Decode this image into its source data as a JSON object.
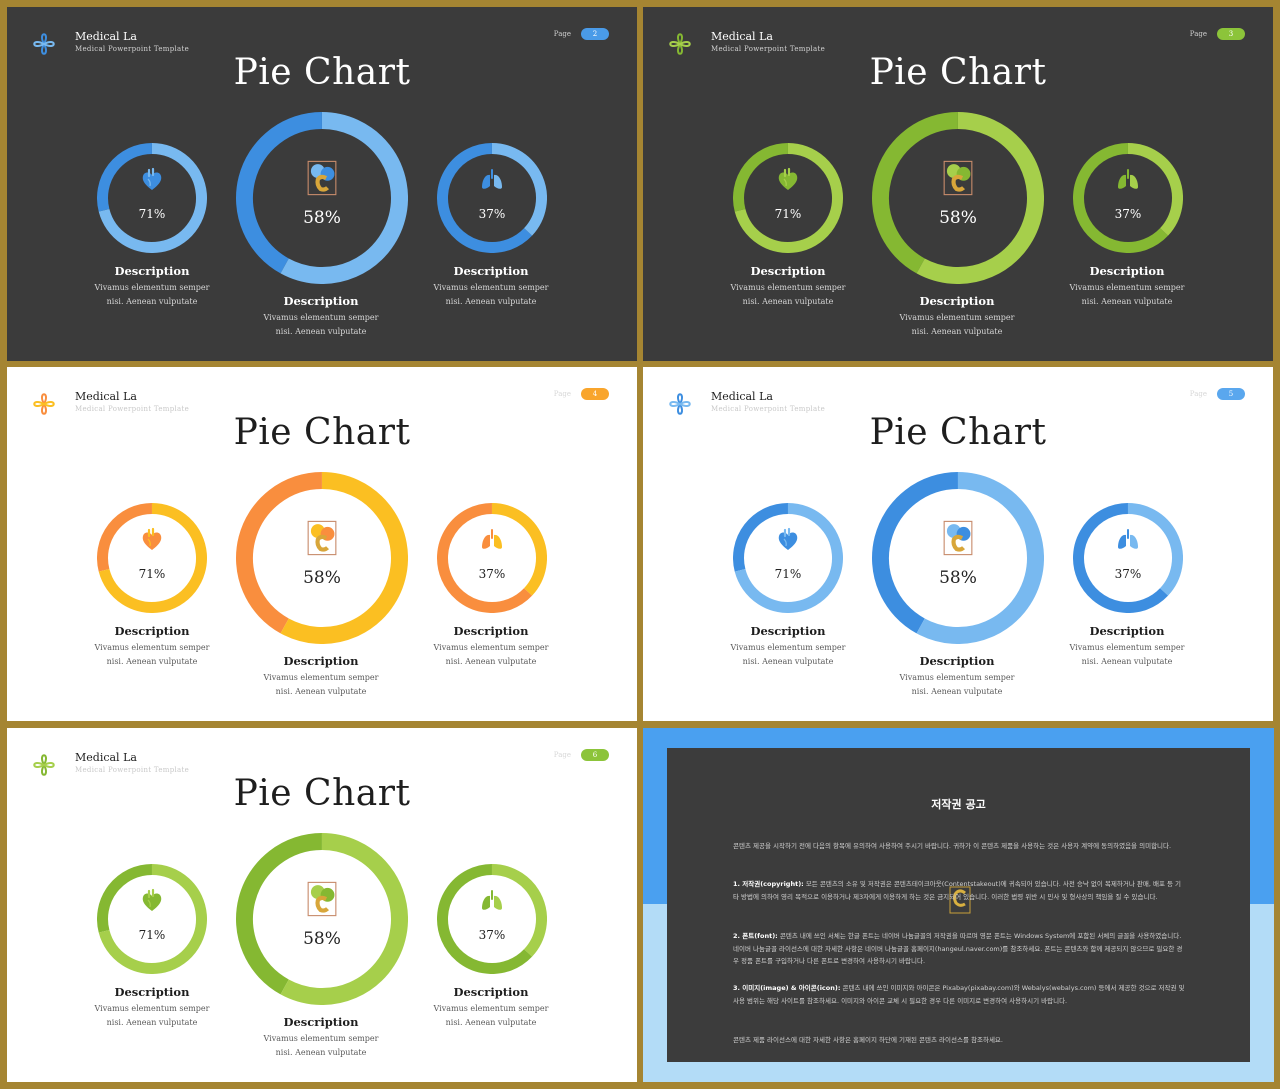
{
  "slides": [
    {
      "theme": "dark",
      "brand": {
        "title": "Medical La",
        "subtitle": "Medical Powerpoint Template"
      },
      "page": {
        "label": "Page",
        "number": "2"
      },
      "title": "Pie Chart",
      "colors": {
        "light": "#78b9f0",
        "dark": "#3d8ee0",
        "pill": "#4a9be8"
      },
      "charts": [
        {
          "value": 71,
          "label": "71%",
          "icon": "heart-icon"
        },
        {
          "value": 58,
          "label": "58%",
          "icon": "brand-logo-icon"
        },
        {
          "value": 37,
          "label": "37%",
          "icon": "lungs-icon"
        }
      ],
      "descriptions": [
        {
          "heading": "Description",
          "line1": "Vivamus elementum semper",
          "line2": "nisi. Aenean vulputate"
        },
        {
          "heading": "Description",
          "line1": "Vivamus elementum semper",
          "line2": "nisi. Aenean vulputate"
        },
        {
          "heading": "Description",
          "line1": "Vivamus elementum semper",
          "line2": "nisi. Aenean vulputate"
        }
      ]
    },
    {
      "theme": "dark",
      "brand": {
        "title": "Medical La",
        "subtitle": "Medical Powerpoint Template"
      },
      "page": {
        "label": "Page",
        "number": "3"
      },
      "title": "Pie Chart",
      "colors": {
        "light": "#a6cf4b",
        "dark": "#85b832",
        "pill": "#8cc43a"
      },
      "charts": [
        {
          "value": 71,
          "label": "71%",
          "icon": "heart-icon"
        },
        {
          "value": 58,
          "label": "58%",
          "icon": "brand-logo-icon"
        },
        {
          "value": 37,
          "label": "37%",
          "icon": "lungs-icon"
        }
      ],
      "descriptions": [
        {
          "heading": "Description",
          "line1": "Vivamus elementum semper",
          "line2": "nisi. Aenean vulputate"
        },
        {
          "heading": "Description",
          "line1": "Vivamus elementum semper",
          "line2": "nisi. Aenean vulputate"
        },
        {
          "heading": "Description",
          "line1": "Vivamus elementum semper",
          "line2": "nisi. Aenean vulputate"
        }
      ]
    },
    {
      "theme": "light",
      "brand": {
        "title": "Medical La",
        "subtitle": "Medical Powerpoint Template"
      },
      "page": {
        "label": "Page",
        "number": "4"
      },
      "title": "Pie Chart",
      "colors": {
        "light": "#fbbf22",
        "dark": "#f98e3e",
        "pill": "#f9a52c"
      },
      "charts": [
        {
          "value": 71,
          "label": "71%",
          "icon": "heart-icon"
        },
        {
          "value": 58,
          "label": "58%",
          "icon": "brand-logo-icon"
        },
        {
          "value": 37,
          "label": "37%",
          "icon": "lungs-icon"
        }
      ],
      "descriptions": [
        {
          "heading": "Description",
          "line1": "Vivamus elementum semper",
          "line2": "nisi. Aenean vulputate"
        },
        {
          "heading": "Description",
          "line1": "Vivamus elementum semper",
          "line2": "nisi. Aenean vulputate"
        },
        {
          "heading": "Description",
          "line1": "Vivamus elementum semper",
          "line2": "nisi. Aenean vulputate"
        }
      ]
    },
    {
      "theme": "light",
      "brand": {
        "title": "Medical La",
        "subtitle": "Medical Powerpoint Template"
      },
      "page": {
        "label": "Page",
        "number": "5"
      },
      "title": "Pie Chart",
      "colors": {
        "light": "#78b9f0",
        "dark": "#3d8ee0",
        "pill": "#5aa7ee"
      },
      "charts": [
        {
          "value": 71,
          "label": "71%",
          "icon": "heart-icon"
        },
        {
          "value": 58,
          "label": "58%",
          "icon": "brand-logo-icon"
        },
        {
          "value": 37,
          "label": "37%",
          "icon": "lungs-icon"
        }
      ],
      "descriptions": [
        {
          "heading": "Description",
          "line1": "Vivamus elementum semper",
          "line2": "nisi. Aenean vulputate"
        },
        {
          "heading": "Description",
          "line1": "Vivamus elementum semper",
          "line2": "nisi. Aenean vulputate"
        },
        {
          "heading": "Description",
          "line1": "Vivamus elementum semper",
          "line2": "nisi. Aenean vulputate"
        }
      ]
    },
    {
      "theme": "light",
      "brand": {
        "title": "Medical La",
        "subtitle": "Medical Powerpoint Template"
      },
      "page": {
        "label": "Page",
        "number": "6"
      },
      "title": "Pie Chart",
      "colors": {
        "light": "#a6cf4b",
        "dark": "#85b832",
        "pill": "#8cc43a"
      },
      "charts": [
        {
          "value": 71,
          "label": "71%",
          "icon": "heart-icon"
        },
        {
          "value": 58,
          "label": "58%",
          "icon": "brand-logo-icon"
        },
        {
          "value": 37,
          "label": "37%",
          "icon": "lungs-icon"
        }
      ],
      "descriptions": [
        {
          "heading": "Description",
          "line1": "Vivamus elementum semper",
          "line2": "nisi. Aenean vulputate"
        },
        {
          "heading": "Description",
          "line1": "Vivamus elementum semper",
          "line2": "nisi. Aenean vulputate"
        },
        {
          "heading": "Description",
          "line1": "Vivamus elementum semper",
          "line2": "nisi. Aenean vulputate"
        }
      ]
    }
  ],
  "notice": {
    "title": "저작권 공고",
    "p1": "콘텐츠 제공을 시작하기 전에 다음의 항목에 유의하여 사용하여 주시기 바랍니다. 귀하가 이 콘텐츠 제품을 사용하는 것은 사용자 계약에 동의하였음을 의미합니다.",
    "p2_head": "1. 저작권(copyright):",
    "p2": " 모든 콘텐츠의 소유 및 저작권은 콘텐츠테이크아웃(Contentstakeout)에 귀속되어 있습니다. 사전 승낙 없이 복제하거나 판매, 배포 등 기타 방법에 의하여 영리 목적으로 이용하거나 제3자에게 이용하게 하는 것은 금지되어 있습니다. 이러한 법령 위반 시 민사 및 형사상의 책임을 질 수 있습니다.",
    "p3_head": "2. 폰트(font):",
    "p3": " 콘텐츠 내에 쓰인 서체는 한글 폰트는 네이버 나눔글꼴의 저작권을 따르며 영문 폰트는 Windows System에 포함된 서체의 글꼴을 사용하였습니다. 네이버 나눔글꼴 라이선스에 대한 자세한 사항은 네이버 나눔글꼴 홈페이지(hangeul.naver.com)를 참조하세요. 폰트는 콘텐츠와 함께 제공되지 않으므로 필요한 경우 정품 폰트를 구입하거나 다른 폰트로 변경하여 사용하시기 바랍니다.",
    "p4_head": "3. 이미지(image) & 아이콘(icon):",
    "p4": " 콘텐츠 내에 쓰인 이미지와 아이콘은 Pixabay(pixabay.com)와 Webalys(webalys.com) 등에서 제공한 것으로 저작권 및 사용 범위는 해당 사이트를 참조하세요. 이미지와 아이콘 교체 시 필요한 경우 다른 이미지로 변경하여 사용하시기 바랍니다.",
    "p5": "콘텐츠 제품 라이선스에 대한 자세한 사항은 홈페이지 하단에 기재된 콘텐츠 라이선스를 참조하세요.",
    "colors": {
      "band_top": "#4aa0f0",
      "band_bottom": "#b3dcf7",
      "panel": "#3c3c3c"
    }
  }
}
